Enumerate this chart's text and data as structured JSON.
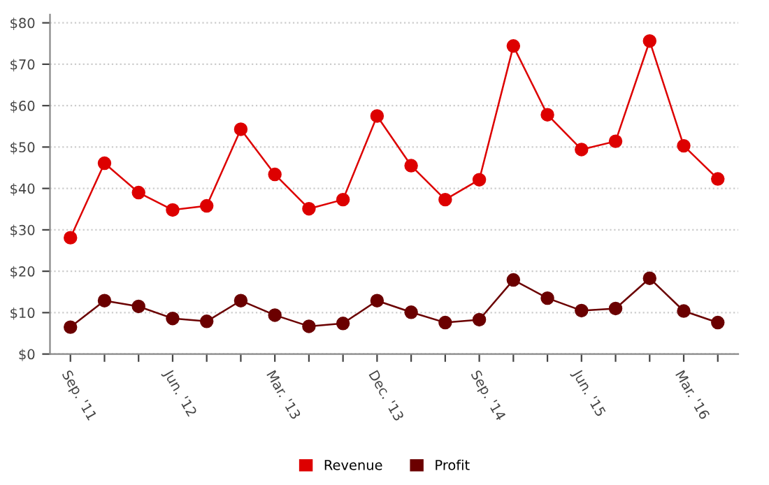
{
  "chart_data": {
    "type": "line",
    "categories": [
      "Sep. '11",
      null,
      null,
      "Jun. '12",
      null,
      null,
      "Mar. '13",
      null,
      null,
      "Dec. '13",
      null,
      null,
      "Sep. '14",
      null,
      null,
      "Jun. '15",
      null,
      null,
      "Mar. '16",
      null
    ],
    "series": [
      {
        "name": "Revenue",
        "color": "#dd0000",
        "values": [
          28.1,
          46.1,
          39.0,
          34.8,
          35.8,
          54.3,
          43.4,
          35.1,
          37.3,
          57.5,
          45.5,
          37.3,
          42.1,
          74.4,
          57.8,
          49.4,
          51.4,
          75.6,
          50.3,
          42.3
        ]
      },
      {
        "name": "Profit",
        "color": "#6b0000",
        "values": [
          6.5,
          12.9,
          11.5,
          8.6,
          7.9,
          12.9,
          9.4,
          6.7,
          7.4,
          12.9,
          10.1,
          7.6,
          8.3,
          17.9,
          13.5,
          10.5,
          11.0,
          18.3,
          10.4,
          7.6
        ]
      }
    ],
    "ylim": [
      0,
      82
    ],
    "yticks": [
      {
        "value": 0,
        "label": "$0"
      },
      {
        "value": 10,
        "label": "$10"
      },
      {
        "value": 20,
        "label": "$20"
      },
      {
        "value": 30,
        "label": "$30"
      },
      {
        "value": 40,
        "label": "$40"
      },
      {
        "value": 50,
        "label": "$50"
      },
      {
        "value": 60,
        "label": "$60"
      },
      {
        "value": 70,
        "label": "$70"
      },
      {
        "value": 80,
        "label": "$80"
      }
    ],
    "grid": "y",
    "legend": "bottom",
    "marker": "circle",
    "line_style": "solid"
  }
}
